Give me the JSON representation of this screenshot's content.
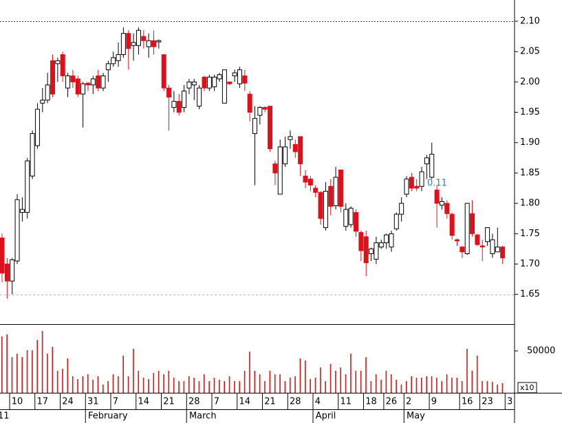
{
  "chart_data": [
    {
      "type": "candlestick",
      "categories": [
        null,
        null,
        "10",
        null,
        null,
        null,
        null,
        "17",
        null,
        null,
        null,
        null,
        "24",
        null,
        null,
        null,
        null,
        "31",
        null,
        null,
        null,
        null,
        "7",
        null,
        null,
        null,
        null,
        "14",
        null,
        null,
        null,
        null,
        "21",
        null,
        null,
        null,
        null,
        "28",
        null,
        null,
        null,
        null,
        "7",
        null,
        null,
        null,
        null,
        "14",
        null,
        null,
        null,
        null,
        "21",
        null,
        null,
        null,
        null,
        "28",
        null,
        null,
        null,
        null,
        "4",
        null,
        null,
        null,
        null,
        "11",
        null,
        null,
        null,
        null,
        "18",
        null,
        null,
        null,
        "26",
        null,
        null,
        null,
        "2",
        null,
        null,
        null,
        null,
        "9",
        null,
        null,
        null,
        null,
        null,
        "16",
        null,
        null,
        null,
        "23",
        null,
        null,
        null,
        null,
        "3"
      ],
      "month_labels": [
        "11",
        null,
        null,
        null,
        null,
        null,
        null,
        null,
        null,
        null,
        null,
        null,
        null,
        null,
        null,
        null,
        null,
        "February",
        null,
        null,
        null,
        null,
        null,
        null,
        null,
        null,
        null,
        null,
        null,
        null,
        null,
        null,
        null,
        null,
        null,
        null,
        null,
        "March",
        null,
        null,
        null,
        null,
        null,
        null,
        null,
        null,
        null,
        null,
        null,
        null,
        null,
        null,
        null,
        null,
        null,
        null,
        null,
        null,
        null,
        null,
        null,
        null,
        "April",
        null,
        null,
        null,
        null,
        null,
        null,
        null,
        null,
        null,
        null,
        null,
        null,
        null,
        null,
        null,
        null,
        null,
        "May",
        null,
        null,
        null,
        null,
        null,
        null,
        null,
        null,
        null,
        null,
        null,
        null,
        null,
        null,
        null,
        null,
        null,
        null,
        null,
        null
      ],
      "open": [
        1.743,
        1.7,
        1.672,
        1.705,
        1.785,
        1.785,
        1.845,
        1.895,
        1.965,
        1.97,
        2.035,
        2.03,
        2.045,
        1.99,
        2.01,
        2.005,
        1.98,
        1.998,
        1.995,
        2.01,
        1.99,
        2.02,
        2.03,
        2.035,
        2.045,
        2.08,
        2.06,
        2.06,
        2.075,
        2.058,
        2.068,
        2.066,
        2.045,
        1.99,
        1.958,
        1.968,
        1.958,
        1.99,
        1.995,
        1.96,
        2.008,
        1.99,
        1.992,
        2.005,
        1.965,
        2.0,
        2.01,
        1.997,
        2.01,
        1.98,
        1.915,
        1.945,
        1.958,
        1.96,
        1.865,
        1.815,
        1.865,
        1.905,
        1.897,
        1.91,
        1.845,
        1.84,
        1.825,
        1.818,
        1.76,
        1.828,
        1.796,
        1.855,
        1.762,
        1.765,
        1.785,
        1.752,
        1.745,
        1.717,
        1.708,
        1.728,
        1.735,
        1.728,
        1.758,
        1.782,
        1.815,
        1.843,
        1.828,
        1.828,
        1.865,
        1.843,
        1.822,
        1.797,
        1.8,
        1.782,
        1.74,
        1.728,
        1.717,
        1.783,
        1.748,
        1.73,
        1.737,
        1.717,
        1.72,
        1.728,
        null
      ],
      "high": [
        1.75,
        1.71,
        1.71,
        1.815,
        1.81,
        1.875,
        1.92,
        1.965,
        1.99,
        2.015,
        2.045,
        2.04,
        2.05,
        2.015,
        2.02,
        2.01,
        2.0,
        2.0,
        2.01,
        2.02,
        2.015,
        2.035,
        2.05,
        2.065,
        2.09,
        2.085,
        2.08,
        2.09,
        2.085,
        2.08,
        2.085,
        2.07,
        2.045,
        1.995,
        1.985,
        1.98,
        1.995,
        2.005,
        2.005,
        1.995,
        2.01,
        2.012,
        2.012,
        2.015,
        2.02,
        2.0,
        2.02,
        2.025,
        2.02,
        1.985,
        1.96,
        1.96,
        1.96,
        1.96,
        1.87,
        1.905,
        1.91,
        1.92,
        1.905,
        1.91,
        1.855,
        1.845,
        1.83,
        1.82,
        1.835,
        1.84,
        1.86,
        1.855,
        1.8,
        1.795,
        1.79,
        1.755,
        1.755,
        1.727,
        1.745,
        1.74,
        1.75,
        1.755,
        1.785,
        1.81,
        1.845,
        1.85,
        1.84,
        1.86,
        1.88,
        1.9,
        1.83,
        1.81,
        1.805,
        1.785,
        1.742,
        1.73,
        1.8,
        1.805,
        1.75,
        1.74,
        1.76,
        1.75,
        1.76,
        1.73,
        null
      ],
      "low": [
        1.67,
        1.643,
        1.65,
        1.7,
        1.77,
        1.775,
        1.84,
        1.89,
        1.95,
        1.965,
        1.975,
        2.0,
        2.0,
        1.975,
        1.99,
        1.975,
        1.925,
        1.985,
        1.98,
        1.985,
        1.985,
        2.0,
        2.025,
        2.025,
        2.04,
        2.02,
        2.035,
        2.045,
        2.055,
        2.04,
        2.045,
        2.055,
        1.985,
        1.92,
        1.95,
        1.945,
        1.95,
        1.98,
        1.97,
        1.955,
        1.985,
        1.985,
        1.985,
        2.0,
        1.965,
        1.995,
        2.0,
        1.99,
        1.985,
        1.935,
        1.83,
        1.93,
        1.95,
        1.885,
        1.83,
        1.815,
        1.86,
        1.89,
        1.875,
        1.845,
        1.825,
        1.82,
        1.81,
        1.765,
        1.755,
        1.78,
        1.79,
        1.785,
        1.755,
        1.76,
        1.745,
        1.705,
        1.68,
        1.705,
        1.7,
        1.725,
        1.725,
        1.72,
        1.755,
        1.77,
        1.81,
        1.82,
        1.82,
        1.82,
        1.84,
        1.84,
        1.76,
        1.79,
        1.775,
        1.74,
        1.73,
        1.71,
        1.715,
        1.745,
        1.73,
        1.705,
        1.73,
        1.71,
        1.72,
        1.7,
        null
      ],
      "close": [
        1.685,
        1.672,
        1.707,
        1.806,
        1.79,
        1.87,
        1.915,
        1.955,
        1.97,
        1.995,
        1.98,
        2.035,
        2.01,
        2.01,
        2.0,
        1.98,
        1.997,
        1.995,
        2.005,
        1.99,
        2.01,
        2.03,
        2.04,
        2.045,
        2.08,
        2.055,
        2.065,
        2.085,
        2.068,
        2.068,
        2.058,
        2.068,
        1.99,
        1.975,
        1.968,
        1.95,
        1.985,
        2.0,
        2.0,
        1.99,
        1.99,
        2.008,
        2.008,
        2.012,
        2.02,
        1.997,
        2.015,
        2.02,
        1.998,
        1.95,
        1.94,
        1.958,
        1.955,
        1.89,
        1.85,
        1.893,
        1.893,
        1.91,
        1.885,
        1.865,
        1.835,
        1.83,
        1.818,
        1.775,
        1.82,
        1.795,
        1.843,
        1.795,
        1.79,
        1.792,
        1.754,
        1.722,
        1.702,
        1.725,
        1.735,
        1.735,
        1.748,
        1.75,
        1.782,
        1.8,
        1.84,
        1.825,
        1.825,
        1.852,
        1.875,
        1.881,
        1.8,
        1.803,
        1.783,
        1.747,
        1.738,
        1.72,
        1.8,
        1.75,
        1.732,
        1.728,
        1.76,
        1.74,
        1.728,
        1.71,
        null
      ],
      "up_color": "#ffffff",
      "down_color": "#e0101a",
      "edge_color": "#000000",
      "ylim": [
        1.601,
        2.135
      ],
      "yticks": [
        {
          "value": 1.65,
          "label": "1.65"
        },
        {
          "value": 1.7,
          "label": "1.70"
        },
        1.75,
        {
          "value": 1.8,
          "label": "1.80"
        },
        1.85,
        {
          "value": 1.9,
          "label": "1.90"
        },
        1.95,
        {
          "value": 2.0,
          "label": "2.00"
        },
        2.05,
        {
          "value": 2.1,
          "label": "2.10"
        }
      ],
      "reference_lines": [
        {
          "value": 2.1,
          "style": "dotted",
          "color": "#333333"
        },
        {
          "value": 1.65,
          "style": "dashed",
          "color": "#bbbbbb"
        }
      ],
      "annotation": "0.11"
    },
    {
      "type": "bar",
      "values": [
        67200,
        69700,
        42600,
        46700,
        42600,
        50800,
        50800,
        63100,
        73800,
        46700,
        54900,
        26200,
        28700,
        41000,
        19700,
        16400,
        19700,
        22100,
        15600,
        19700,
        9800,
        13900,
        22100,
        19700,
        44300,
        19700,
        52500,
        26200,
        18000,
        16400,
        23800,
        26200,
        22100,
        26200,
        18000,
        13900,
        13900,
        19700,
        18000,
        13900,
        22100,
        13900,
        18000,
        15600,
        13900,
        19700,
        13900,
        13900,
        26200,
        49200,
        26200,
        22100,
        13900,
        26200,
        22100,
        22100,
        13900,
        18000,
        19700,
        41000,
        38500,
        16400,
        18000,
        30300,
        13900,
        34400,
        26200,
        30300,
        22100,
        46700,
        26200,
        26200,
        42600,
        13900,
        22100,
        15600,
        26200,
        22100,
        15600,
        9800,
        13900,
        19700,
        18000,
        18000,
        19700,
        19700,
        18000,
        13900,
        22100,
        18000,
        18000,
        13900,
        52500,
        26200,
        44300,
        13900,
        13900,
        13100,
        9800,
        11500,
        null
      ],
      "color": "#d01818",
      "ylim": [
        0,
        82000
      ],
      "yticks": [
        50000
      ],
      "unit_label": "x10"
    }
  ]
}
